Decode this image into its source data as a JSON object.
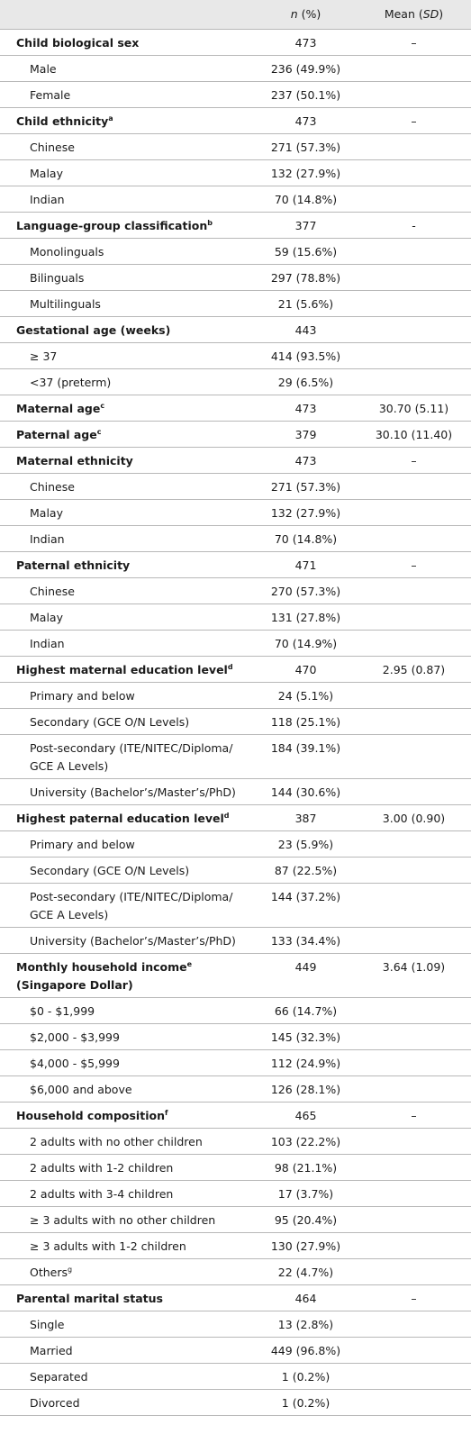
{
  "header": {
    "n_label_italic": "n",
    "n_label_rest": " (%)",
    "mean_label_rest": "Mean (",
    "mean_label_italic": "SD",
    "mean_label_close": ")"
  },
  "rows": [
    {
      "type": "head",
      "label": "Child biological sex",
      "sup": "",
      "n": "473",
      "mean": "–",
      "h": 29
    },
    {
      "type": "sub",
      "label": "Male",
      "sup": "",
      "n": "236 (49.9%)",
      "mean": "",
      "h": 29
    },
    {
      "type": "sub",
      "label": "Female",
      "sup": "",
      "n": "237 (50.1%)",
      "mean": "",
      "h": 29
    },
    {
      "type": "head",
      "label": "Child ethnicity",
      "sup": "a",
      "n": "473",
      "mean": "–",
      "h": 29
    },
    {
      "type": "sub",
      "label": "Chinese",
      "sup": "",
      "n": "271 (57.3%)",
      "mean": "",
      "h": 29
    },
    {
      "type": "sub",
      "label": "Malay",
      "sup": "",
      "n": "132 (27.9%)",
      "mean": "",
      "h": 29
    },
    {
      "type": "sub",
      "label": "Indian",
      "sup": "",
      "n": "70 (14.8%)",
      "mean": "",
      "h": 29
    },
    {
      "type": "head",
      "label": "Language-group classification",
      "sup": "b",
      "n": "377",
      "mean": "-",
      "h": 29
    },
    {
      "type": "sub",
      "label": "Monolinguals",
      "sup": "",
      "n": "59 (15.6%)",
      "mean": "",
      "h": 29
    },
    {
      "type": "sub",
      "label": "Bilinguals",
      "sup": "",
      "n": "297 (78.8%)",
      "mean": "",
      "h": 29
    },
    {
      "type": "sub",
      "label": "Multilinguals",
      "sup": "",
      "n": "21 (5.6%)",
      "mean": "",
      "h": 29
    },
    {
      "type": "head",
      "label": "Gestational age (weeks)",
      "sup": "",
      "n": "443",
      "mean": "",
      "h": 29
    },
    {
      "type": "sub",
      "label": "≥ 37",
      "sup": "",
      "n": "414 (93.5%)",
      "mean": "",
      "h": 29
    },
    {
      "type": "sub",
      "label": "<37 (preterm)",
      "sup": "",
      "n": "29 (6.5%)",
      "mean": "",
      "h": 29
    },
    {
      "type": "head",
      "label": "Maternal age",
      "sup": "c",
      "n": "473",
      "mean": "30.70 (5.11)",
      "h": 29
    },
    {
      "type": "head",
      "label": "Paternal age",
      "sup": "c",
      "n": "379",
      "mean": "30.10 (11.40)",
      "h": 29
    },
    {
      "type": "head",
      "label": "Maternal ethnicity",
      "sup": "",
      "n": "473",
      "mean": "–",
      "h": 29
    },
    {
      "type": "sub",
      "label": "Chinese",
      "sup": "",
      "n": "271 (57.3%)",
      "mean": "",
      "h": 29
    },
    {
      "type": "sub",
      "label": "Malay",
      "sup": "",
      "n": "132 (27.9%)",
      "mean": "",
      "h": 29
    },
    {
      "type": "sub",
      "label": "Indian",
      "sup": "",
      "n": "70 (14.8%)",
      "mean": "",
      "h": 29
    },
    {
      "type": "head",
      "label": "Paternal ethnicity",
      "sup": "",
      "n": "471",
      "mean": "–",
      "h": 29
    },
    {
      "type": "sub",
      "label": "Chinese",
      "sup": "",
      "n": "270 (57.3%)",
      "mean": "",
      "h": 29
    },
    {
      "type": "sub",
      "label": "Malay",
      "sup": "",
      "n": "131 (27.8%)",
      "mean": "",
      "h": 29
    },
    {
      "type": "sub",
      "label": "Indian",
      "sup": "",
      "n": "70 (14.9%)",
      "mean": "",
      "h": 29
    },
    {
      "type": "head",
      "label": "Highest maternal education level",
      "sup": "d",
      "n": "470",
      "mean": "2.95 (0.87)",
      "h": 29
    },
    {
      "type": "sub",
      "label": "Primary and below",
      "sup": "",
      "n": "24 (5.1%)",
      "mean": "",
      "h": 29
    },
    {
      "type": "sub",
      "label": "Secondary (GCE O/N Levels)",
      "sup": "",
      "n": "118 (25.1%)",
      "mean": "",
      "h": 29
    },
    {
      "type": "sub",
      "label": "Post-secondary (ITE/NITEC/Diploma/ GCE A Levels)",
      "sup": "",
      "n": "184 (39.1%)",
      "mean": "",
      "h": 47
    },
    {
      "type": "sub",
      "label": "University (Bachelor’s/Master’s/PhD)",
      "sup": "",
      "n": "144 (30.6%)",
      "mean": "",
      "h": 29
    },
    {
      "type": "head",
      "label": "Highest paternal education level",
      "sup": "d",
      "n": "387",
      "mean": "3.00 (0.90)",
      "h": 29
    },
    {
      "type": "sub",
      "label": "Primary and below",
      "sup": "",
      "n": "23 (5.9%)",
      "mean": "",
      "h": 29
    },
    {
      "type": "sub",
      "label": "Secondary (GCE O/N Levels)",
      "sup": "",
      "n": "87 (22.5%)",
      "mean": "",
      "h": 29
    },
    {
      "type": "sub",
      "label": "Post-secondary (ITE/NITEC/Diploma/ GCE A Levels)",
      "sup": "",
      "n": "144 (37.2%)",
      "mean": "",
      "h": 47
    },
    {
      "type": "sub",
      "label": "University (Bachelor’s/Master’s/PhD)",
      "sup": "",
      "n": "133 (34.4%)",
      "mean": "",
      "h": 29
    },
    {
      "type": "head",
      "label": "Monthly household income",
      "sup": "e",
      "label2": "(Singapore Dollar)",
      "n": "449",
      "mean": "3.64 (1.09)",
      "h": 47
    },
    {
      "type": "sub",
      "label": "$0 - $1,999",
      "sup": "",
      "n": "66 (14.7%)",
      "mean": "",
      "h": 29
    },
    {
      "type": "sub",
      "label": "$2,000 - $3,999",
      "sup": "",
      "n": "145 (32.3%)",
      "mean": "",
      "h": 29
    },
    {
      "type": "sub",
      "label": "$4,000 - $5,999",
      "sup": "",
      "n": "112 (24.9%)",
      "mean": "",
      "h": 29
    },
    {
      "type": "sub",
      "label": "$6,000 and above",
      "sup": "",
      "n": "126 (28.1%)",
      "mean": "",
      "h": 29
    },
    {
      "type": "head",
      "label": "Household composition",
      "sup": "f",
      "n": "465",
      "mean": "–",
      "h": 29
    },
    {
      "type": "sub",
      "label": "2 adults with no other children",
      "sup": "",
      "n": "103 (22.2%)",
      "mean": "",
      "h": 29
    },
    {
      "type": "sub",
      "label": "2 adults with 1-2 children",
      "sup": "",
      "n": "98 (21.1%)",
      "mean": "",
      "h": 29
    },
    {
      "type": "sub",
      "label": "2 adults with 3-4 children",
      "sup": "",
      "n": "17 (3.7%)",
      "mean": "",
      "h": 29
    },
    {
      "type": "sub",
      "label": "≥ 3 adults with no other children",
      "sup": "",
      "n": "95 (20.4%)",
      "mean": "",
      "h": 29
    },
    {
      "type": "sub",
      "label": "≥ 3 adults with 1-2 children",
      "sup": "",
      "n": "130 (27.9%)",
      "mean": "",
      "h": 29
    },
    {
      "type": "sub",
      "label": "Others",
      "sup": "g",
      "n": "22 (4.7%)",
      "mean": "",
      "h": 29
    },
    {
      "type": "head",
      "label": "Parental marital status",
      "sup": "",
      "n": "464",
      "mean": "–",
      "h": 29
    },
    {
      "type": "sub",
      "label": "Single",
      "sup": "",
      "n": "13 (2.8%)",
      "mean": "",
      "h": 29
    },
    {
      "type": "sub",
      "label": "Married",
      "sup": "",
      "n": "449 (96.8%)",
      "mean": "",
      "h": 29
    },
    {
      "type": "sub",
      "label": "Separated",
      "sup": "",
      "n": "1 (0.2%)",
      "mean": "",
      "h": 29
    },
    {
      "type": "sub",
      "label": "Divorced",
      "sup": "",
      "n": "1 (0.2%)",
      "mean": "",
      "h": 29
    }
  ]
}
